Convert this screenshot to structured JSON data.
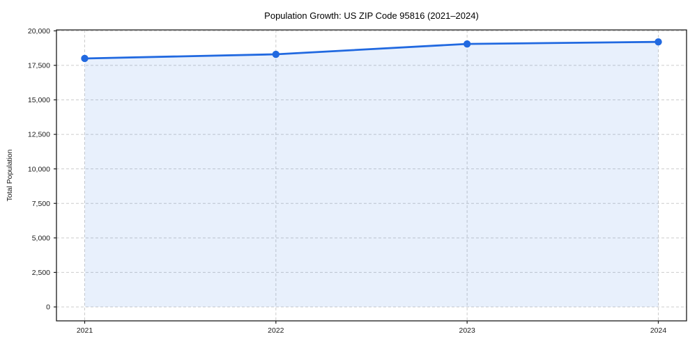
{
  "chart_data": {
    "type": "line",
    "title": "Population Growth: US ZIP Code 95816 (2021–2024)",
    "xlabel": "",
    "ylabel": "Total Population",
    "x": [
      "2021",
      "2022",
      "2023",
      "2024"
    ],
    "series": [
      {
        "name": "Total Population",
        "values": [
          18000,
          18300,
          19050,
          19200
        ]
      }
    ],
    "ylim": [
      0,
      20000
    ],
    "ytick_values": [
      0,
      2500,
      5000,
      7500,
      10000,
      12500,
      15000,
      17500,
      20000
    ],
    "ytick_labels": [
      "0",
      "2,500",
      "5,000",
      "7,500",
      "10,000",
      "12,500",
      "15,000",
      "17,500",
      "20,000"
    ],
    "grid": true,
    "grid_style": "dashed",
    "legend": false,
    "marker": "circle",
    "area_fill": true,
    "colors": {
      "line": "#2169e0",
      "marker": "#2169e0",
      "area": "rgba(33,105,224,0.10)",
      "grid": "#cccccc",
      "frame": "#1a1a1a",
      "text": "#1a1a1a",
      "title": "#000000",
      "background": "#ffffff"
    }
  }
}
